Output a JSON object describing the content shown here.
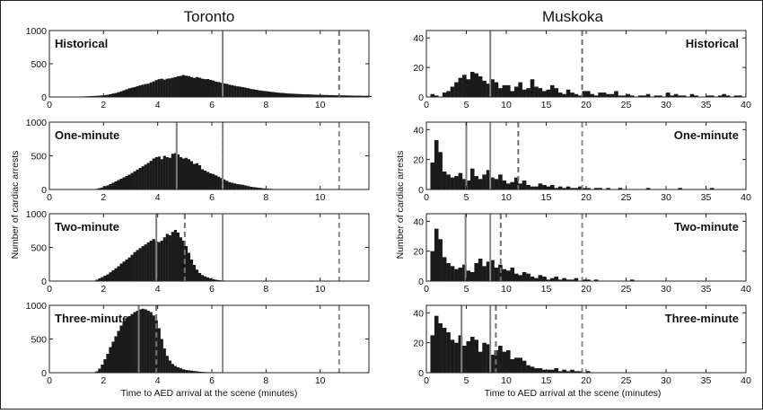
{
  "figure": {
    "y_axis_label": "Number of cardiac arrests",
    "x_axis_label": "Time to AED arrival at the scene (minutes)"
  },
  "chart_data": [
    {
      "type": "bar",
      "region": "Toronto",
      "scenario": "Historical",
      "label_position": "top-left",
      "show_title": true,
      "xlim": [
        0,
        11.8
      ],
      "ylim": [
        0,
        1000
      ],
      "xticks": [
        0,
        2,
        4,
        6,
        8,
        10
      ],
      "yticks": [
        0,
        500,
        1000
      ],
      "bin_width": 0.1,
      "x_start": 0.3,
      "values": [
        2,
        2,
        2,
        3,
        3,
        4,
        5,
        5,
        6,
        8,
        10,
        12,
        14,
        16,
        18,
        20,
        24,
        28,
        34,
        42,
        52,
        60,
        72,
        85,
        100,
        115,
        130,
        140,
        150,
        162,
        175,
        185,
        195,
        200,
        220,
        235,
        255,
        268,
        275,
        262,
        275,
        280,
        290,
        300,
        312,
        318,
        330,
        320,
        315,
        300,
        288,
        300,
        290,
        275,
        268,
        270,
        258,
        248,
        232,
        225,
        215,
        205,
        198,
        185,
        178,
        168,
        160,
        155,
        148,
        140,
        132,
        120,
        115,
        108,
        100,
        95,
        90,
        85,
        80,
        75,
        70,
        65,
        62,
        60,
        55,
        52,
        50,
        48,
        46,
        44,
        42,
        40,
        40,
        38,
        36,
        34,
        32,
        32,
        30,
        30,
        28,
        28,
        26,
        26,
        25,
        24,
        24,
        22,
        22,
        20,
        20,
        20,
        18,
        18,
        18,
        16
      ],
      "median_line": 6.4,
      "p90_line": 10.7
    },
    {
      "type": "bar",
      "region": "Toronto",
      "scenario": "One-minute",
      "label_position": "top-left",
      "show_title": false,
      "xlim": [
        0,
        11.8
      ],
      "ylim": [
        0,
        1000
      ],
      "xticks": [
        0,
        2,
        4,
        6,
        8,
        10
      ],
      "yticks": [
        0,
        500,
        1000
      ],
      "bin_width": 0.1,
      "x_start": 1.6,
      "values": [
        5,
        10,
        20,
        30,
        50,
        60,
        80,
        100,
        120,
        140,
        160,
        180,
        200,
        220,
        245,
        270,
        295,
        320,
        345,
        370,
        395,
        425,
        460,
        480,
        490,
        450,
        500,
        480,
        470,
        530,
        540,
        520,
        480,
        460,
        470,
        450,
        420,
        380,
        390,
        360,
        300,
        280,
        260,
        240,
        230,
        210,
        190,
        170,
        150,
        130,
        110,
        100,
        90,
        80,
        75,
        70,
        60,
        50,
        40,
        35,
        30,
        25,
        20,
        15,
        12,
        10,
        8,
        6,
        5,
        4
      ],
      "median_line": 4.7,
      "p90_line": 6.4
    },
    {
      "type": "bar",
      "region": "Toronto",
      "scenario": "Two-minute",
      "label_position": "top-left",
      "show_title": false,
      "xlim": [
        0,
        11.8
      ],
      "ylim": [
        0,
        1000
      ],
      "xticks": [
        0,
        2,
        4,
        6,
        8,
        10
      ],
      "yticks": [
        0,
        500,
        1000
      ],
      "bin_width": 0.1,
      "x_start": 1.6,
      "values": [
        5,
        20,
        40,
        60,
        80,
        100,
        130,
        160,
        190,
        220,
        260,
        290,
        320,
        350,
        390,
        430,
        460,
        490,
        520,
        545,
        575,
        600,
        625,
        590,
        580,
        600,
        650,
        700,
        680,
        730,
        760,
        720,
        650,
        600,
        520,
        420,
        320,
        240,
        170,
        120,
        90,
        70,
        55,
        40,
        30,
        20,
        15,
        10,
        8,
        5
      ],
      "median_line": 3.95,
      "p90_line": 5.0
    },
    {
      "type": "bar",
      "region": "Toronto",
      "scenario": "Three-minute",
      "label_position": "top-left",
      "show_title": false,
      "xlim": [
        0,
        11.8
      ],
      "ylim": [
        0,
        1000
      ],
      "xticks": [
        0,
        2,
        4,
        6,
        8,
        10
      ],
      "yticks": [
        0,
        500,
        1000
      ],
      "bin_width": 0.1,
      "x_start": 1.7,
      "values": [
        20,
        60,
        120,
        200,
        280,
        380,
        460,
        540,
        620,
        700,
        760,
        800,
        840,
        870,
        900,
        920,
        940,
        950,
        940,
        920,
        900,
        850,
        780,
        660,
        500,
        360,
        250,
        180,
        130,
        100,
        80,
        65,
        50,
        40,
        35,
        30,
        25,
        20,
        15,
        12,
        10,
        8,
        6,
        5,
        4,
        3
      ],
      "median_line": 3.3,
      "p90_line": 3.95
    },
    {
      "type": "bar",
      "region": "Muskoka",
      "scenario": "Historical",
      "label_position": "top-right",
      "show_title": true,
      "xlim": [
        0,
        40
      ],
      "ylim": [
        0,
        45
      ],
      "xticks": [
        0,
        5,
        10,
        15,
        20,
        25,
        30,
        35,
        40
      ],
      "yticks": [
        0,
        20,
        40
      ],
      "bin_width": 0.5,
      "x_start": 0.5,
      "values": [
        2,
        1,
        0,
        3,
        4,
        7,
        10,
        13,
        15,
        12,
        17,
        16,
        14,
        11,
        9,
        12,
        10,
        6,
        8,
        8,
        4,
        7,
        10,
        5,
        6,
        12,
        7,
        6,
        4,
        5,
        8,
        6,
        3,
        2,
        5,
        3,
        2,
        1,
        4,
        4,
        2,
        1,
        3,
        3,
        2,
        2,
        4,
        1,
        1,
        2,
        1,
        0,
        1,
        1,
        2,
        0,
        1,
        1,
        0,
        3,
        1,
        2,
        1,
        1,
        0,
        2,
        1,
        0,
        0,
        1,
        1,
        0,
        1,
        2,
        1,
        0,
        1,
        1,
        0,
        0
      ],
      "median_line": 8.0,
      "p90_line": 19.5
    },
    {
      "type": "bar",
      "region": "Muskoka",
      "scenario": "One-minute",
      "label_position": "top-right",
      "show_title": false,
      "xlim": [
        0,
        40
      ],
      "ylim": [
        0,
        45
      ],
      "xticks": [
        0,
        5,
        10,
        15,
        20,
        25,
        30,
        35,
        40
      ],
      "yticks": [
        0,
        20,
        40
      ],
      "bin_width": 0.5,
      "x_start": 0.5,
      "values": [
        18,
        33,
        25,
        12,
        10,
        8,
        9,
        11,
        7,
        6,
        14,
        9,
        7,
        10,
        13,
        8,
        7,
        10,
        6,
        4,
        5,
        8,
        4,
        6,
        3,
        2,
        2,
        4,
        3,
        2,
        3,
        1,
        2,
        1,
        2,
        1,
        1,
        2,
        1,
        1,
        0,
        1,
        1,
        0,
        1,
        0,
        0,
        1,
        0,
        0,
        0,
        0,
        0,
        0,
        1,
        0,
        0,
        0,
        0,
        0,
        0,
        0,
        1,
        0,
        0,
        0,
        0,
        0,
        0,
        0,
        1
      ],
      "median_line": 5.0,
      "p90_line": 11.5
    },
    {
      "type": "bar",
      "region": "Muskoka",
      "scenario": "Two-minute",
      "label_position": "top-right",
      "show_title": false,
      "xlim": [
        0,
        40
      ],
      "ylim": [
        0,
        45
      ],
      "xticks": [
        0,
        5,
        10,
        15,
        20,
        25,
        30,
        35,
        40
      ],
      "yticks": [
        0,
        20,
        40
      ],
      "bin_width": 0.5,
      "x_start": 0.5,
      "values": [
        20,
        35,
        28,
        16,
        12,
        10,
        8,
        9,
        11,
        7,
        6,
        12,
        15,
        10,
        13,
        14,
        9,
        11,
        8,
        7,
        9,
        5,
        4,
        6,
        5,
        3,
        2,
        4,
        3,
        1,
        2,
        3,
        1,
        2,
        1,
        1,
        2,
        0,
        1,
        1,
        0,
        1,
        0,
        0,
        0,
        0,
        0,
        0,
        0,
        0,
        1
      ],
      "median_line": 4.9,
      "p90_line": 9.3
    },
    {
      "type": "bar",
      "region": "Muskoka",
      "scenario": "Three-minute",
      "label_position": "top-right",
      "show_title": false,
      "xlim": [
        0,
        40
      ],
      "ylim": [
        0,
        45
      ],
      "xticks": [
        0,
        5,
        10,
        15,
        20,
        25,
        30,
        35,
        40
      ],
      "yticks": [
        0,
        20,
        40
      ],
      "bin_width": 0.5,
      "x_start": 0.5,
      "values": [
        25,
        38,
        33,
        30,
        27,
        22,
        20,
        25,
        18,
        21,
        24,
        22,
        14,
        20,
        19,
        12,
        15,
        18,
        14,
        15,
        9,
        10,
        10,
        8,
        5,
        4,
        3,
        3,
        2,
        2,
        2,
        3,
        1,
        2,
        1,
        2,
        1,
        1,
        0,
        1
      ],
      "median_line": 4.4,
      "p90_line": 8.7
    }
  ],
  "colors": {
    "bars": "#1a1a1a",
    "median_line": "#808080",
    "p90_line": "#707070",
    "ref_line": "#8a8a8a",
    "frame": "#222222"
  }
}
